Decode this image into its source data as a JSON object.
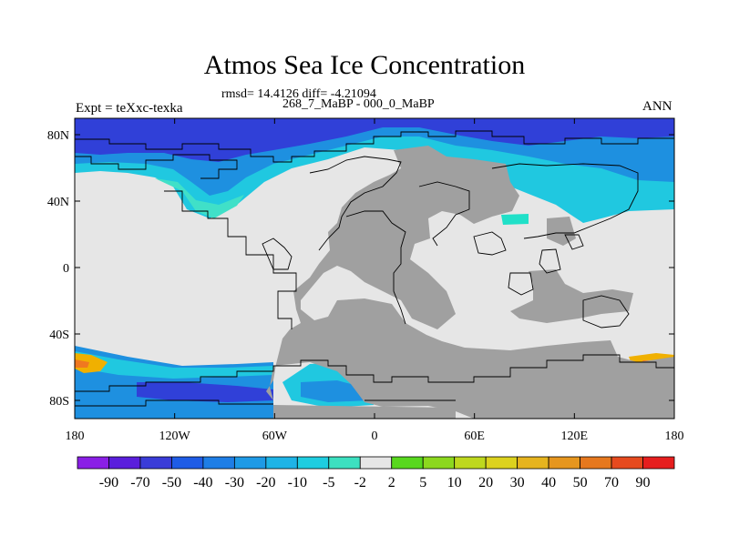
{
  "title": "Atmos Sea Ice Concentration",
  "subtitle_stats": "rmsd= 14.4126 diff= -4.21094",
  "subtitle_period": "268_7_MaBP - 000_0_MaBP",
  "left_string": "Expt = teXxc-texka",
  "right_string": "ANN",
  "map": {
    "lat_ticks": [
      {
        "value": 80,
        "label": "80N"
      },
      {
        "value": 40,
        "label": "40N"
      },
      {
        "value": 0,
        "label": "0"
      },
      {
        "value": -40,
        "label": "40S"
      },
      {
        "value": -80,
        "label": "80S"
      }
    ],
    "lon_ticks": [
      {
        "value": -180,
        "label": "180"
      },
      {
        "value": -120,
        "label": "120W"
      },
      {
        "value": -60,
        "label": "60W"
      },
      {
        "value": 0,
        "label": "0"
      },
      {
        "value": 60,
        "label": "60E"
      },
      {
        "value": 120,
        "label": "120E"
      },
      {
        "value": 180,
        "label": "180"
      }
    ],
    "colors": {
      "land": "#a0a0a0",
      "zero": "#e6e6e6",
      "deep": "#3040d8",
      "mid": "#1e90e0",
      "light": "#20c0e0",
      "pale": "#40e0c8",
      "warm1": "#f0b000",
      "warm2": "#f07820",
      "green": "#88d800"
    }
  },
  "colorbar": {
    "labels": [
      "-90",
      "-70",
      "-50",
      "-40",
      "-30",
      "-20",
      "-10",
      "-5",
      "-2",
      "2",
      "5",
      "10",
      "20",
      "30",
      "40",
      "50",
      "70",
      "90"
    ],
    "colors": [
      "#8a1fe6",
      "#5a1edc",
      "#3a3cd8",
      "#1f5ce6",
      "#1e7ee6",
      "#1e9ae6",
      "#1eb4e6",
      "#1ecde0",
      "#3ce0c0",
      "#e6e6e6",
      "#58d81e",
      "#8cd81e",
      "#bed81e",
      "#dcd21e",
      "#e6b41e",
      "#e6961e",
      "#e6781e",
      "#e64a1e",
      "#e61e1e"
    ]
  }
}
